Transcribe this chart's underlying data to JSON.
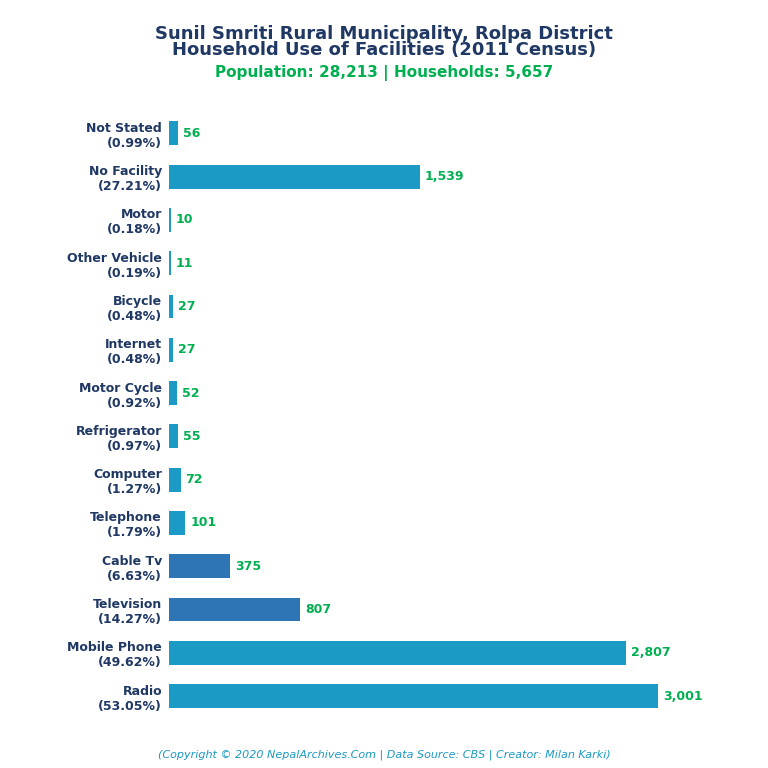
{
  "title_line1": "Sunil Smriti Rural Municipality, Rolpa District",
  "title_line2": "Household Use of Facilities (2011 Census)",
  "subtitle": "Population: 28,213 | Households: 5,657",
  "footer": "(Copyright © 2020 NepalArchives.Com | Data Source: CBS | Creator: Milan Karki)",
  "categories": [
    "Not Stated\n(0.99%)",
    "No Facility\n(27.21%)",
    "Motor\n(0.18%)",
    "Other Vehicle\n(0.19%)",
    "Bicycle\n(0.48%)",
    "Internet\n(0.48%)",
    "Motor Cycle\n(0.92%)",
    "Refrigerator\n(0.97%)",
    "Computer\n(1.27%)",
    "Telephone\n(1.79%)",
    "Cable Tv\n(6.63%)",
    "Television\n(14.27%)",
    "Mobile Phone\n(49.62%)",
    "Radio\n(53.05%)"
  ],
  "values": [
    56,
    1539,
    10,
    11,
    27,
    27,
    52,
    55,
    72,
    101,
    375,
    807,
    2807,
    3001
  ],
  "bar_colors": [
    "#1a9ac4",
    "#1a9ac4",
    "#1a9ac4",
    "#1a9ac4",
    "#1a9ac4",
    "#1a9ac4",
    "#1a9ac4",
    "#1a9ac4",
    "#1a9ac4",
    "#1a9ac4",
    "#2e75b6",
    "#2e75b6",
    "#1a9ac4",
    "#1a9ac4"
  ],
  "title_color": "#1f3864",
  "subtitle_color": "#00b050",
  "value_label_color": "#00b050",
  "ylabel_color": "#1f3864",
  "footer_color": "#1a9ac4",
  "background_color": "#ffffff",
  "xlim": [
    0,
    3300
  ]
}
